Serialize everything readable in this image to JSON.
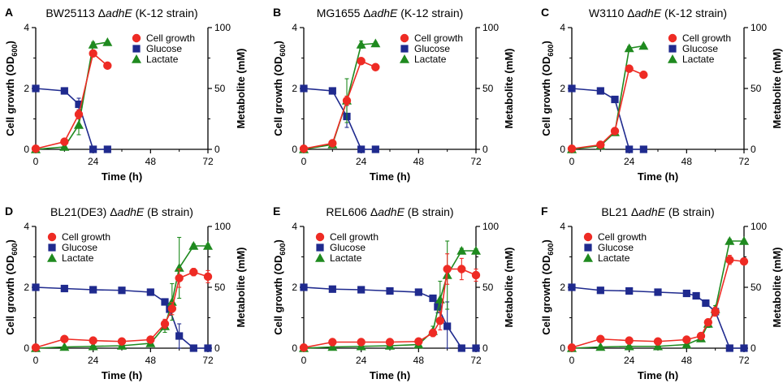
{
  "figure": {
    "shared_axes": {
      "xlabel": "Time (h)",
      "ylabel_left_main": "Cell growth (OD",
      "ylabel_left_sub": "600",
      "ylabel_left_close": ")",
      "ylabel_right": "Metabolite (mM)",
      "x_ticks": [
        "0",
        "24",
        "48",
        "72"
      ],
      "y_left_ticks": [
        "0",
        "2",
        "4"
      ],
      "y_right_ticks": [
        "0",
        "50",
        "100"
      ]
    },
    "colors": {
      "cell_growth": "#ee2b24",
      "glucose": "#1f2a8e",
      "lactate": "#1f8a1f",
      "axis": "#000000"
    }
  },
  "chart_data": [
    {
      "panel": "A",
      "type": "line",
      "title_pre": "BW25113 Δ",
      "title_gene": "adhE",
      "title_post": " (K-12 strain)",
      "xlabel": "Time (h)",
      "ylabel_left": "Cell growth (OD600)",
      "ylabel_right": "Metabolite (mM)",
      "xlim": [
        0,
        72
      ],
      "ylim_left": [
        0,
        4
      ],
      "ylim_right": [
        0,
        100
      ],
      "legend": [
        "Cell growth",
        "Glucose",
        "Lactate"
      ],
      "legend_position": "top-right",
      "series": [
        {
          "name": "Cell growth",
          "axis": "left",
          "x": [
            0,
            12,
            18,
            24,
            30
          ],
          "y": [
            0.02,
            0.25,
            1.15,
            3.15,
            2.75
          ],
          "err": [
            0.02,
            0.05,
            0.15,
            0.08,
            0.06
          ]
        },
        {
          "name": "Glucose",
          "axis": "right",
          "x": [
            0,
            12,
            18,
            24,
            30
          ],
          "y": [
            50,
            48,
            37,
            0,
            0
          ],
          "err": [
            1,
            1.5,
            5,
            0.5,
            0.5
          ]
        },
        {
          "name": "Lactate",
          "axis": "right",
          "x": [
            0,
            12,
            18,
            24,
            30
          ],
          "y": [
            0,
            2,
            20,
            86,
            88
          ],
          "err": [
            0.5,
            1,
            8,
            2,
            1
          ]
        }
      ]
    },
    {
      "panel": "B",
      "type": "line",
      "title_pre": "MG1655 Δ",
      "title_gene": "adhE",
      "title_post": " (K-12 strain)",
      "xlabel": "Time (h)",
      "ylabel_left": "Cell growth (OD600)",
      "ylabel_right": "Metabolite (mM)",
      "xlim": [
        0,
        72
      ],
      "ylim_left": [
        0,
        4
      ],
      "ylim_right": [
        0,
        100
      ],
      "legend": [
        "Cell growth",
        "Glucose",
        "Lactate"
      ],
      "legend_position": "top-right",
      "series": [
        {
          "name": "Cell growth",
          "axis": "left",
          "x": [
            0,
            12,
            18,
            24,
            30
          ],
          "y": [
            0.02,
            0.2,
            1.6,
            2.9,
            2.7
          ],
          "err": [
            0.02,
            0.05,
            0.15,
            0.07,
            0.06
          ]
        },
        {
          "name": "Glucose",
          "axis": "right",
          "x": [
            0,
            12,
            18,
            24,
            30
          ],
          "y": [
            50,
            48,
            27,
            0,
            0
          ],
          "err": [
            1,
            1.5,
            9,
            0.5,
            0.5
          ]
        },
        {
          "name": "Lactate",
          "axis": "right",
          "x": [
            0,
            12,
            18,
            24,
            30
          ],
          "y": [
            0,
            4,
            40,
            86,
            87
          ],
          "err": [
            0.5,
            1,
            18,
            3,
            1
          ]
        }
      ]
    },
    {
      "panel": "C",
      "type": "line",
      "title_pre": "W3110 Δ",
      "title_gene": "adhE",
      "title_post": " (K-12 strain)",
      "xlabel": "Time (h)",
      "ylabel_left": "Cell growth (OD600)",
      "ylabel_right": "Metabolite (mM)",
      "xlim": [
        0,
        72
      ],
      "ylim_left": [
        0,
        4
      ],
      "ylim_right": [
        0,
        100
      ],
      "legend": [
        "Cell growth",
        "Glucose",
        "Lactate"
      ],
      "legend_position": "top-right",
      "series": [
        {
          "name": "Cell growth",
          "axis": "left",
          "x": [
            0,
            12,
            18,
            24,
            30
          ],
          "y": [
            0.02,
            0.15,
            0.6,
            2.65,
            2.45
          ],
          "err": [
            0.02,
            0.04,
            0.06,
            0.05,
            0.05
          ]
        },
        {
          "name": "Glucose",
          "axis": "right",
          "x": [
            0,
            12,
            18,
            24,
            30
          ],
          "y": [
            50,
            48,
            41,
            0,
            0
          ],
          "err": [
            1,
            1,
            1.5,
            0.5,
            0.5
          ]
        },
        {
          "name": "Lactate",
          "axis": "right",
          "x": [
            0,
            12,
            18,
            24,
            30
          ],
          "y": [
            0,
            3,
            14,
            83,
            85
          ],
          "err": [
            0.5,
            1,
            2,
            1.5,
            1
          ]
        }
      ]
    },
    {
      "panel": "D",
      "type": "line",
      "title_pre": "BL21(DE3) Δ",
      "title_gene": "adhE",
      "title_post": " (B strain)",
      "xlabel": "Time (h)",
      "ylabel_left": "Cell growth (OD600)",
      "ylabel_right": "Metabolite (mM)",
      "xlim": [
        0,
        72
      ],
      "ylim_left": [
        0,
        4
      ],
      "ylim_right": [
        0,
        100
      ],
      "legend": [
        "Cell growth",
        "Glucose",
        "Lactate"
      ],
      "legend_position": "top-left",
      "series": [
        {
          "name": "Cell growth",
          "axis": "left",
          "x": [
            0,
            12,
            24,
            36,
            48,
            54,
            57,
            60,
            66,
            72
          ],
          "y": [
            0.02,
            0.3,
            0.25,
            0.22,
            0.28,
            0.8,
            1.3,
            2.3,
            2.5,
            2.35
          ],
          "err": [
            0.02,
            0.05,
            0.04,
            0.04,
            0.05,
            0.15,
            0.2,
            0.3,
            0.12,
            0.2
          ]
        },
        {
          "name": "Glucose",
          "axis": "right",
          "x": [
            0,
            12,
            24,
            36,
            48,
            54,
            56,
            60,
            66,
            72
          ],
          "y": [
            50,
            49,
            48,
            47.5,
            46,
            38,
            32,
            10,
            0,
            0
          ],
          "err": [
            1,
            1,
            1,
            1,
            1.5,
            2,
            5,
            10,
            0.5,
            0.5
          ]
        },
        {
          "name": "Lactate",
          "axis": "right",
          "x": [
            0,
            12,
            24,
            36,
            48,
            54,
            57,
            60,
            66,
            72
          ],
          "y": [
            0,
            1,
            1.5,
            2,
            4,
            18,
            38,
            66,
            84,
            84
          ],
          "err": [
            0.5,
            0.5,
            0.5,
            0.5,
            1,
            5,
            15,
            25,
            1.5,
            1.5
          ]
        }
      ]
    },
    {
      "panel": "E",
      "type": "line",
      "title_pre": "REL606 Δ",
      "title_gene": "adhE",
      "title_post": " (B strain)",
      "xlabel": "Time (h)",
      "ylabel_left": "Cell growth (OD600)",
      "ylabel_right": "Metabolite (mM)",
      "xlim": [
        0,
        72
      ],
      "ylim_left": [
        0,
        4
      ],
      "ylim_right": [
        0,
        100
      ],
      "legend": [
        "Cell growth",
        "Glucose",
        "Lactate"
      ],
      "legend_position": "top-left",
      "series": [
        {
          "name": "Cell growth",
          "axis": "left",
          "x": [
            0,
            12,
            24,
            36,
            48,
            54,
            57,
            60,
            66,
            72
          ],
          "y": [
            0.02,
            0.2,
            0.2,
            0.2,
            0.22,
            0.5,
            0.9,
            2.6,
            2.6,
            2.4
          ],
          "err": [
            0.02,
            0.04,
            0.04,
            0.04,
            0.05,
            0.12,
            0.3,
            0.5,
            0.35,
            0.2
          ]
        },
        {
          "name": "Glucose",
          "axis": "right",
          "x": [
            0,
            12,
            24,
            36,
            48,
            54,
            56,
            60,
            66,
            72
          ],
          "y": [
            50,
            48.5,
            48,
            47,
            46,
            41,
            34,
            18,
            0,
            0
          ],
          "err": [
            1,
            1,
            1,
            1,
            1.5,
            2,
            5,
            20,
            0.5,
            0.5
          ]
        },
        {
          "name": "Lactate",
          "axis": "right",
          "x": [
            0,
            12,
            24,
            36,
            48,
            54,
            57,
            60,
            66,
            72
          ],
          "y": [
            0,
            1,
            1.5,
            2,
            3,
            14,
            40,
            60,
            80,
            80
          ],
          "err": [
            0.5,
            0.5,
            0.5,
            0.5,
            1,
            4,
            15,
            28,
            2,
            1.5
          ]
        }
      ]
    },
    {
      "panel": "F",
      "type": "line",
      "title_pre": "BL21 Δ",
      "title_gene": "adhE",
      "title_post": " (B strain)",
      "xlabel": "Time (h)",
      "ylabel_left": "Cell growth (OD600)",
      "ylabel_right": "Metabolite (mM)",
      "xlim": [
        0,
        72
      ],
      "ylim_left": [
        0,
        4
      ],
      "ylim_right": [
        0,
        100
      ],
      "legend": [
        "Cell growth",
        "Glucose",
        "Lactate"
      ],
      "legend_position": "top-left",
      "series": [
        {
          "name": "Cell growth",
          "axis": "left",
          "x": [
            0,
            12,
            24,
            36,
            48,
            54,
            57,
            60,
            66,
            72
          ],
          "y": [
            0.02,
            0.3,
            0.25,
            0.22,
            0.28,
            0.4,
            0.85,
            1.2,
            2.9,
            2.85
          ],
          "err": [
            0.02,
            0.05,
            0.04,
            0.04,
            0.05,
            0.06,
            0.1,
            0.15,
            0.15,
            0.1
          ]
        },
        {
          "name": "Glucose",
          "axis": "right",
          "x": [
            0,
            12,
            24,
            36,
            48,
            52,
            56,
            60,
            66,
            72
          ],
          "y": [
            50,
            47.5,
            47,
            46,
            45,
            43,
            37,
            30,
            0,
            0
          ],
          "err": [
            1,
            1,
            1,
            1,
            1,
            1.5,
            2,
            3,
            0.5,
            0.5
          ]
        },
        {
          "name": "Lactate",
          "axis": "right",
          "x": [
            0,
            12,
            24,
            36,
            48,
            54,
            57,
            60,
            66,
            72
          ],
          "y": [
            0,
            1,
            1.5,
            1.5,
            3,
            8,
            20,
            32,
            88,
            88
          ],
          "err": [
            0.5,
            0.5,
            0.5,
            0.5,
            1,
            2,
            3,
            3,
            1.5,
            1
          ]
        }
      ]
    }
  ]
}
